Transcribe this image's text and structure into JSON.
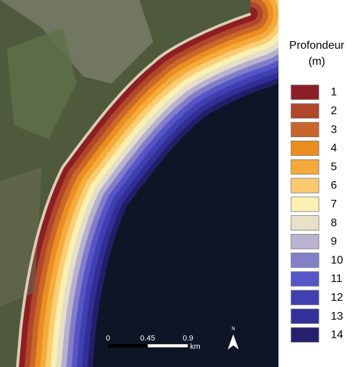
{
  "legend": {
    "title": "Profondeur",
    "unit": "(m)",
    "items": [
      {
        "label": "1",
        "color": "#8b1e24"
      },
      {
        "label": "2",
        "color": "#b0462a"
      },
      {
        "label": "3",
        "color": "#c8652a"
      },
      {
        "label": "4",
        "color": "#e98d1f"
      },
      {
        "label": "5",
        "color": "#f5a93a"
      },
      {
        "label": "6",
        "color": "#fcca6e"
      },
      {
        "label": "7",
        "color": "#fdf0b0"
      },
      {
        "label": "8",
        "color": "#e6e1c8"
      },
      {
        "label": "9",
        "color": "#b9b3cf"
      },
      {
        "label": "10",
        "color": "#8480c8"
      },
      {
        "label": "11",
        "color": "#5656c8"
      },
      {
        "label": "12",
        "color": "#4040b0"
      },
      {
        "label": "13",
        "color": "#33309a"
      },
      {
        "label": "14",
        "color": "#24206e"
      }
    ]
  },
  "scale_bar": {
    "ticks": [
      "0",
      "0.45",
      "0.9"
    ],
    "unit": "km"
  },
  "north_arrow": "N"
}
